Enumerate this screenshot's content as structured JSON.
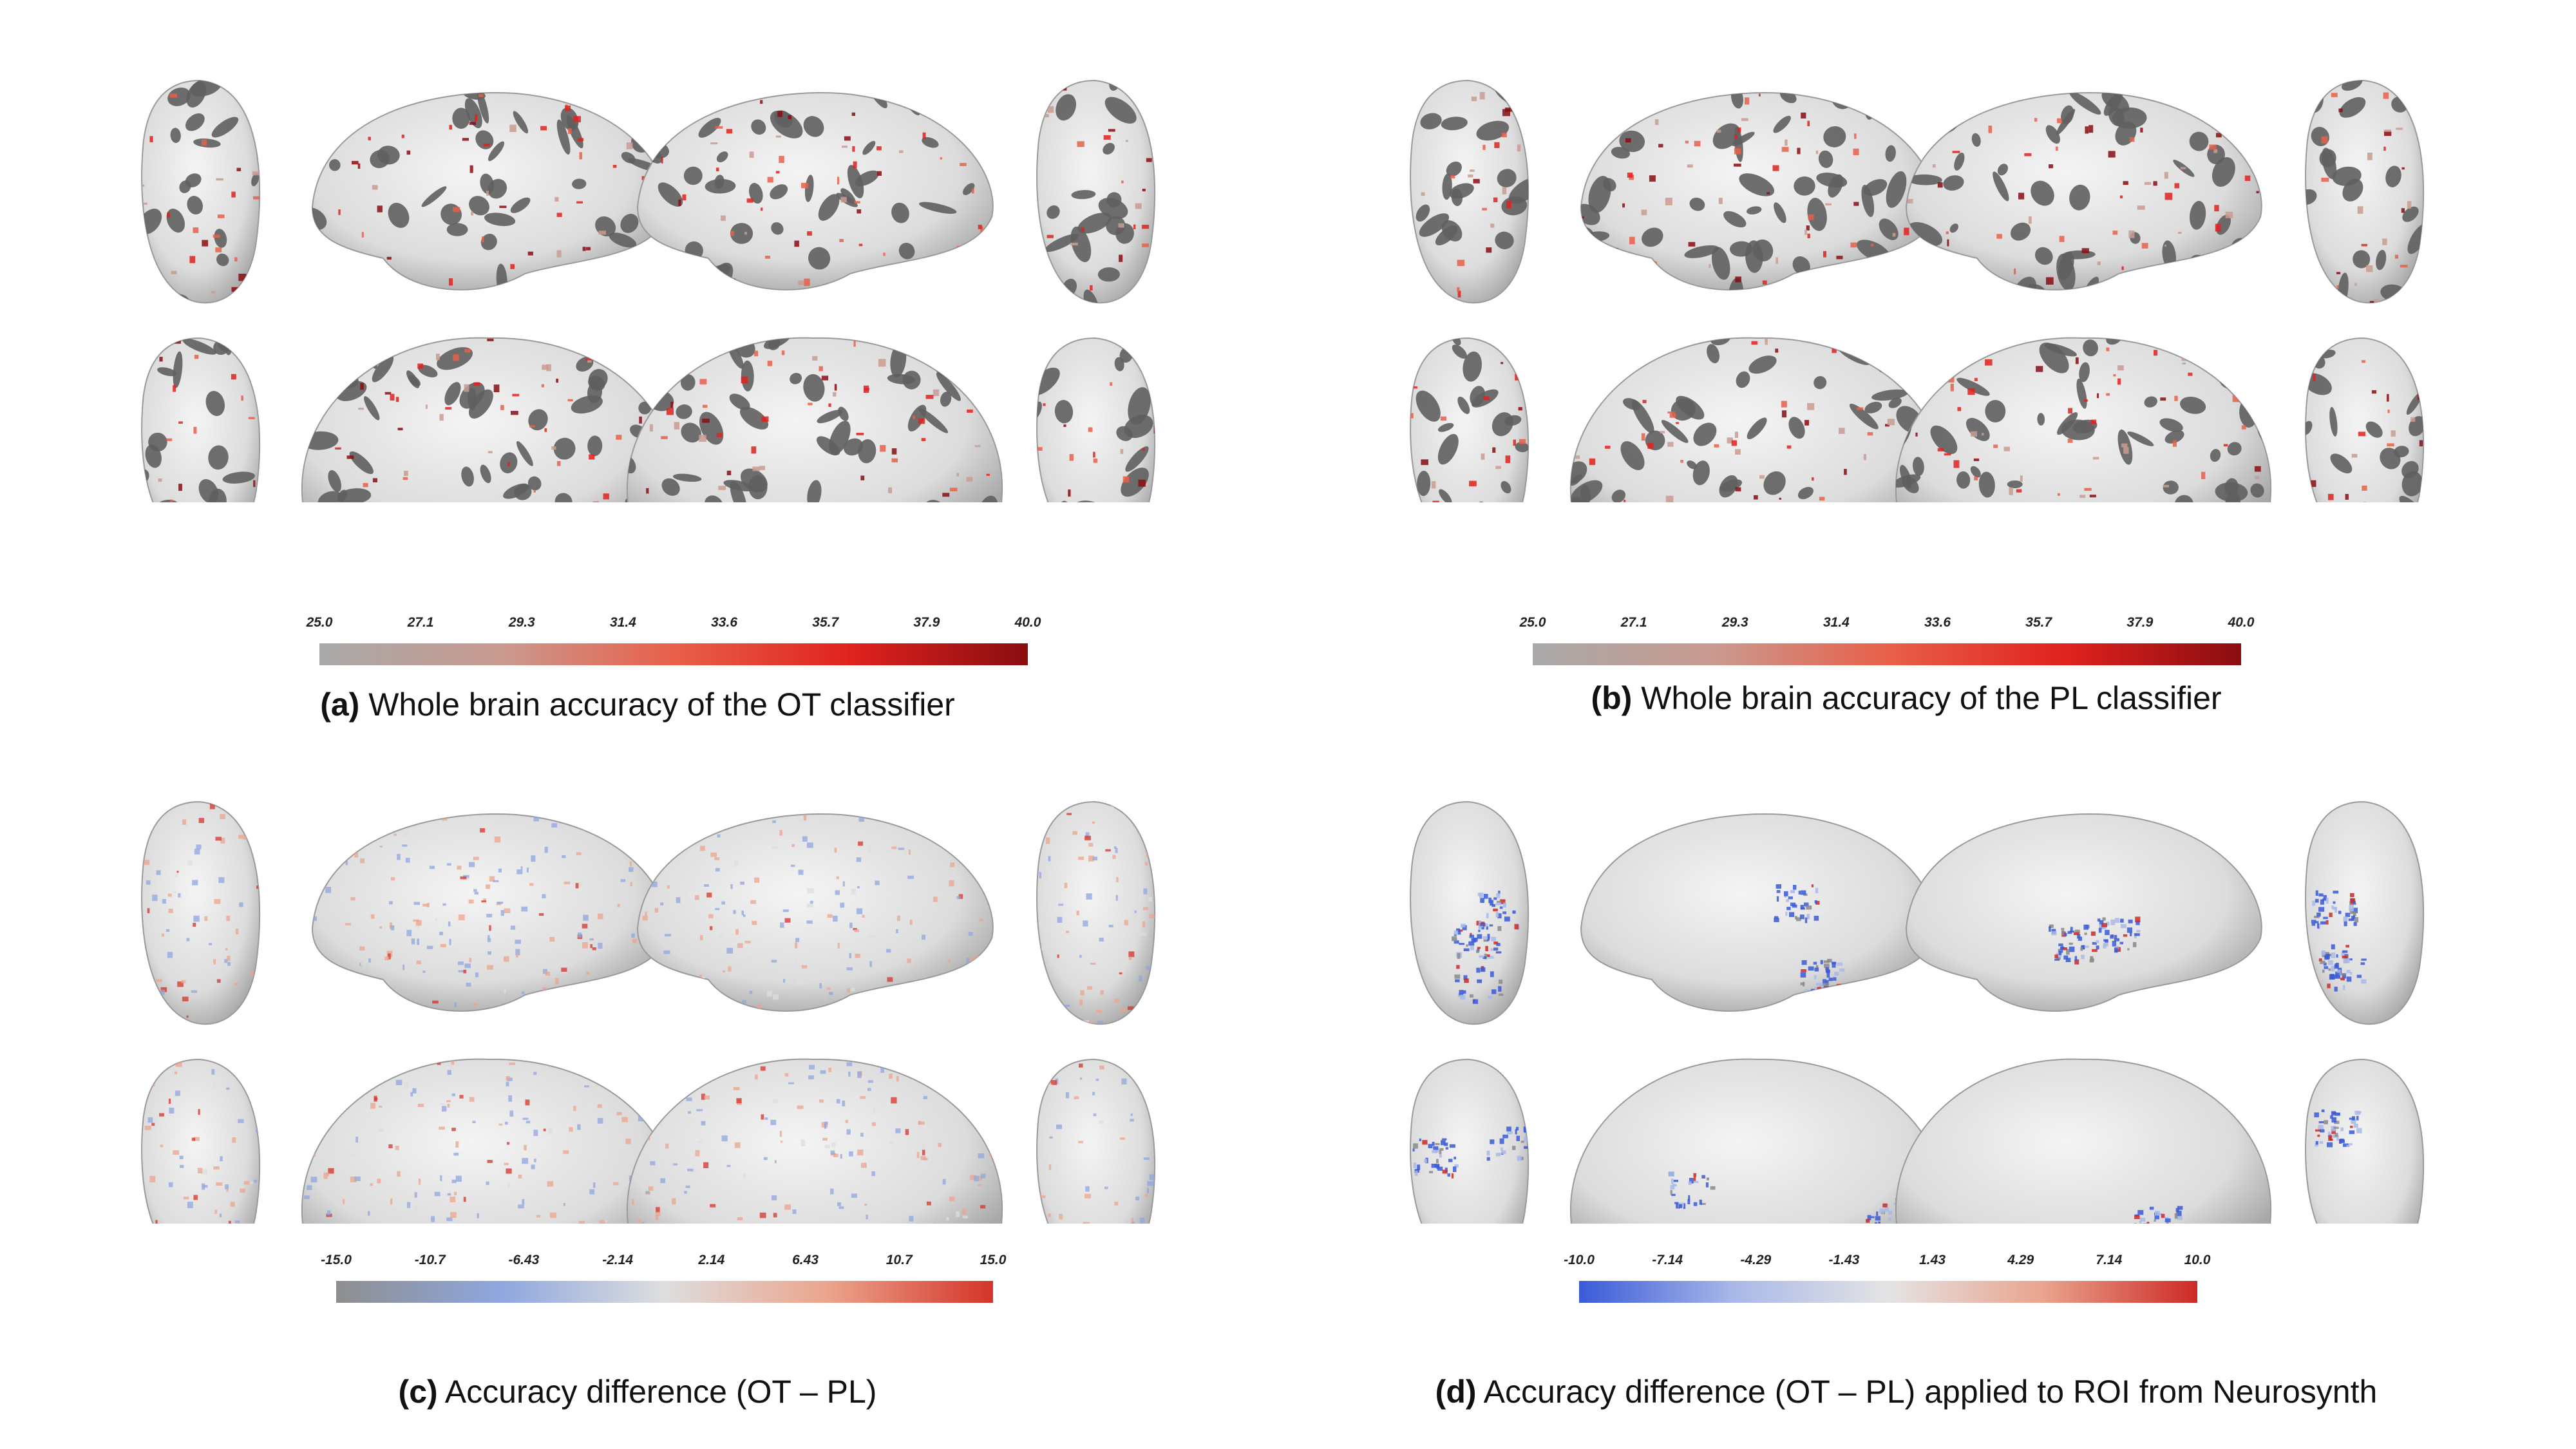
{
  "figure": {
    "panels": [
      {
        "id": "a",
        "label": "(a)",
        "caption": "Whole brain accuracy of the OT classifier",
        "surface": "inflated-curvature",
        "colormap": {
          "name": "gray-red",
          "stops": [
            "#a9a9a9",
            "#c99b91",
            "#e8604a",
            "#e0221e",
            "#8a0d10"
          ]
        },
        "colorbar_ticks": [
          "25.0",
          "27.1",
          "29.3",
          "31.4",
          "33.6",
          "35.7",
          "37.9",
          "40.0"
        ]
      },
      {
        "id": "b",
        "label": "(b)",
        "caption": "Whole brain accuracy of the PL classifier",
        "surface": "inflated-curvature",
        "colormap": {
          "name": "gray-red",
          "stops": [
            "#a9a9a9",
            "#c99b91",
            "#e8604a",
            "#e0221e",
            "#8a0d10"
          ]
        },
        "colorbar_ticks": [
          "25.0",
          "27.1",
          "29.3",
          "31.4",
          "33.6",
          "35.7",
          "37.9",
          "40.0"
        ]
      },
      {
        "id": "c",
        "label": "(c)",
        "caption": "Accuracy difference (OT – PL)",
        "surface": "inflated-smooth",
        "colormap": {
          "name": "gray-blue-red",
          "stops": [
            "#8e8e8e",
            "#8fa7df",
            "#dedede",
            "#eba48c",
            "#d43429"
          ]
        },
        "colorbar_ticks": [
          "-15.0",
          "-10.7",
          "-6.43",
          "-2.14",
          "2.14",
          "6.43",
          "10.7",
          "15.0"
        ]
      },
      {
        "id": "d",
        "label": "(d)",
        "caption": "Accuracy difference (OT – PL) applied to ROI from Neurosynth",
        "surface": "inflated-smooth-roi",
        "colormap": {
          "name": "blue-white-red",
          "stops": [
            "#3a5ad8",
            "#a9b8e8",
            "#e4e4e4",
            "#e9a48e",
            "#cd2a26"
          ]
        },
        "colorbar_ticks": [
          "-10.0",
          "-7.14",
          "-4.29",
          "-1.43",
          "1.43",
          "4.29",
          "7.14",
          "10.0"
        ]
      }
    ]
  }
}
